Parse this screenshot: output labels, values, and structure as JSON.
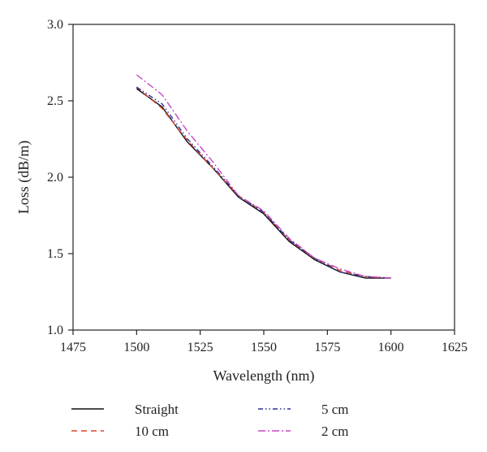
{
  "chart_data": {
    "type": "line",
    "xlabel": "Wavelength (nm)",
    "ylabel": "Loss (dB/m)",
    "xlim": [
      1475,
      1625
    ],
    "ylim": [
      1.0,
      3.0
    ],
    "xticks": [
      1475,
      1500,
      1525,
      1550,
      1575,
      1600,
      1625
    ],
    "yticks": [
      1.0,
      1.5,
      2.0,
      2.5,
      3.0
    ],
    "xtick_labels": [
      "1475",
      "1500",
      "1525",
      "1550",
      "1575",
      "1600",
      "1625"
    ],
    "ytick_labels": [
      "1.0",
      "1.5",
      "2.0",
      "2.5",
      "3.0"
    ],
    "grid": false,
    "legend_position": "bottom",
    "x": [
      1500,
      1510,
      1520,
      1530,
      1540,
      1550,
      1560,
      1570,
      1580,
      1590,
      1600
    ],
    "series": [
      {
        "name": "Straight",
        "color": "#111111",
        "dash": "solid",
        "values": [
          2.58,
          2.46,
          2.23,
          2.06,
          1.87,
          1.76,
          1.58,
          1.46,
          1.38,
          1.34,
          1.34
        ]
      },
      {
        "name": "10 cm",
        "color": "#d9442b",
        "dash": "dashed",
        "values": [
          2.59,
          2.45,
          2.24,
          2.06,
          1.88,
          1.77,
          1.59,
          1.47,
          1.39,
          1.35,
          1.34
        ]
      },
      {
        "name": "5 cm",
        "color": "#2b2f9c",
        "dash": "dash-dot-dot",
        "values": [
          2.59,
          2.48,
          2.25,
          2.07,
          1.88,
          1.77,
          1.59,
          1.47,
          1.38,
          1.35,
          1.34
        ]
      },
      {
        "name": "2 cm",
        "color": "#c846c8",
        "dash": "dash-dot",
        "values": [
          2.67,
          2.54,
          2.3,
          2.1,
          1.88,
          1.78,
          1.6,
          1.47,
          1.4,
          1.35,
          1.34
        ]
      }
    ]
  }
}
